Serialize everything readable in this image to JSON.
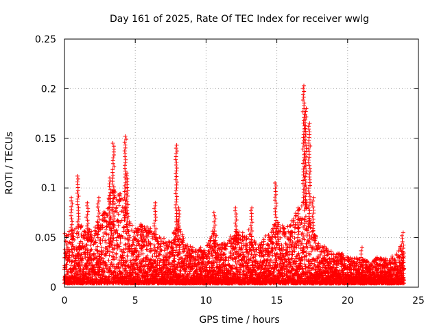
{
  "chart_data": {
    "type": "scatter",
    "title": "Day 161 of 2025, Rate Of TEC Index for receiver wwlg",
    "xlabel": "GPS time / hours",
    "ylabel": "ROTI / TECUs",
    "xlim": [
      0,
      25
    ],
    "ylim": [
      0,
      0.25
    ],
    "x_ticks": [
      0,
      5,
      10,
      15,
      20,
      25
    ],
    "x_tick_labels": [
      "0",
      "5",
      "10",
      "15",
      "20",
      "25"
    ],
    "y_ticks": [
      0,
      0.05,
      0.1,
      0.15,
      0.2,
      0.25
    ],
    "y_tick_labels": [
      "0",
      "0.05",
      "0.1",
      "0.15",
      "0.2",
      "0.25"
    ],
    "grid": true,
    "marker": "+",
    "marker_color": "#ff0000",
    "series": [
      {
        "name": "ROTI",
        "envelope": {
          "x": [
            0,
            0.5,
            1,
            1.5,
            2,
            2.5,
            3,
            3.5,
            4,
            4.5,
            5,
            5.5,
            6,
            6.5,
            7,
            7.5,
            8,
            8.5,
            9,
            9.5,
            10,
            10.5,
            11,
            11.5,
            12,
            12.5,
            13,
            13.5,
            14,
            14.5,
            15,
            15.5,
            16,
            16.5,
            17,
            17.5,
            18,
            18.5,
            19,
            19.5,
            20,
            20.5,
            21,
            21.5,
            22,
            22.5,
            23,
            23.5,
            24
          ],
          "upper": [
            0.055,
            0.06,
            0.065,
            0.06,
            0.06,
            0.07,
            0.09,
            0.1,
            0.1,
            0.07,
            0.06,
            0.065,
            0.06,
            0.055,
            0.05,
            0.045,
            0.07,
            0.045,
            0.04,
            0.04,
            0.04,
            0.06,
            0.045,
            0.045,
            0.06,
            0.055,
            0.06,
            0.045,
            0.05,
            0.055,
            0.07,
            0.06,
            0.065,
            0.08,
            0.09,
            0.06,
            0.045,
            0.04,
            0.035,
            0.035,
            0.03,
            0.03,
            0.03,
            0.025,
            0.03,
            0.03,
            0.03,
            0.035,
            0.05
          ]
        },
        "spikes": [
          {
            "x": 0.5,
            "ymin": 0.045,
            "ymax": 0.09
          },
          {
            "x": 0.95,
            "ymin": 0.06,
            "ymax": 0.112
          },
          {
            "x": 1.6,
            "ymin": 0.05,
            "ymax": 0.085
          },
          {
            "x": 2.4,
            "ymin": 0.05,
            "ymax": 0.09
          },
          {
            "x": 3.2,
            "ymin": 0.06,
            "ymax": 0.11
          },
          {
            "x": 3.45,
            "ymin": 0.06,
            "ymax": 0.145
          },
          {
            "x": 4.3,
            "ymin": 0.07,
            "ymax": 0.152
          },
          {
            "x": 4.45,
            "ymin": 0.06,
            "ymax": 0.115
          },
          {
            "x": 6.4,
            "ymin": 0.05,
            "ymax": 0.085
          },
          {
            "x": 7.9,
            "ymin": 0.04,
            "ymax": 0.143
          },
          {
            "x": 8.1,
            "ymin": 0.04,
            "ymax": 0.08
          },
          {
            "x": 10.6,
            "ymin": 0.035,
            "ymax": 0.075
          },
          {
            "x": 12.1,
            "ymin": 0.04,
            "ymax": 0.08
          },
          {
            "x": 13.2,
            "ymin": 0.045,
            "ymax": 0.08
          },
          {
            "x": 14.9,
            "ymin": 0.05,
            "ymax": 0.105
          },
          {
            "x": 16.5,
            "ymin": 0.05,
            "ymax": 0.08
          },
          {
            "x": 16.9,
            "ymin": 0.09,
            "ymax": 0.203
          },
          {
            "x": 17.05,
            "ymin": 0.08,
            "ymax": 0.18
          },
          {
            "x": 17.3,
            "ymin": 0.06,
            "ymax": 0.165
          },
          {
            "x": 17.55,
            "ymin": 0.05,
            "ymax": 0.09
          },
          {
            "x": 21.0,
            "ymin": 0.02,
            "ymax": 0.04
          },
          {
            "x": 23.9,
            "ymin": 0.03,
            "ymax": 0.055
          }
        ]
      }
    ]
  }
}
